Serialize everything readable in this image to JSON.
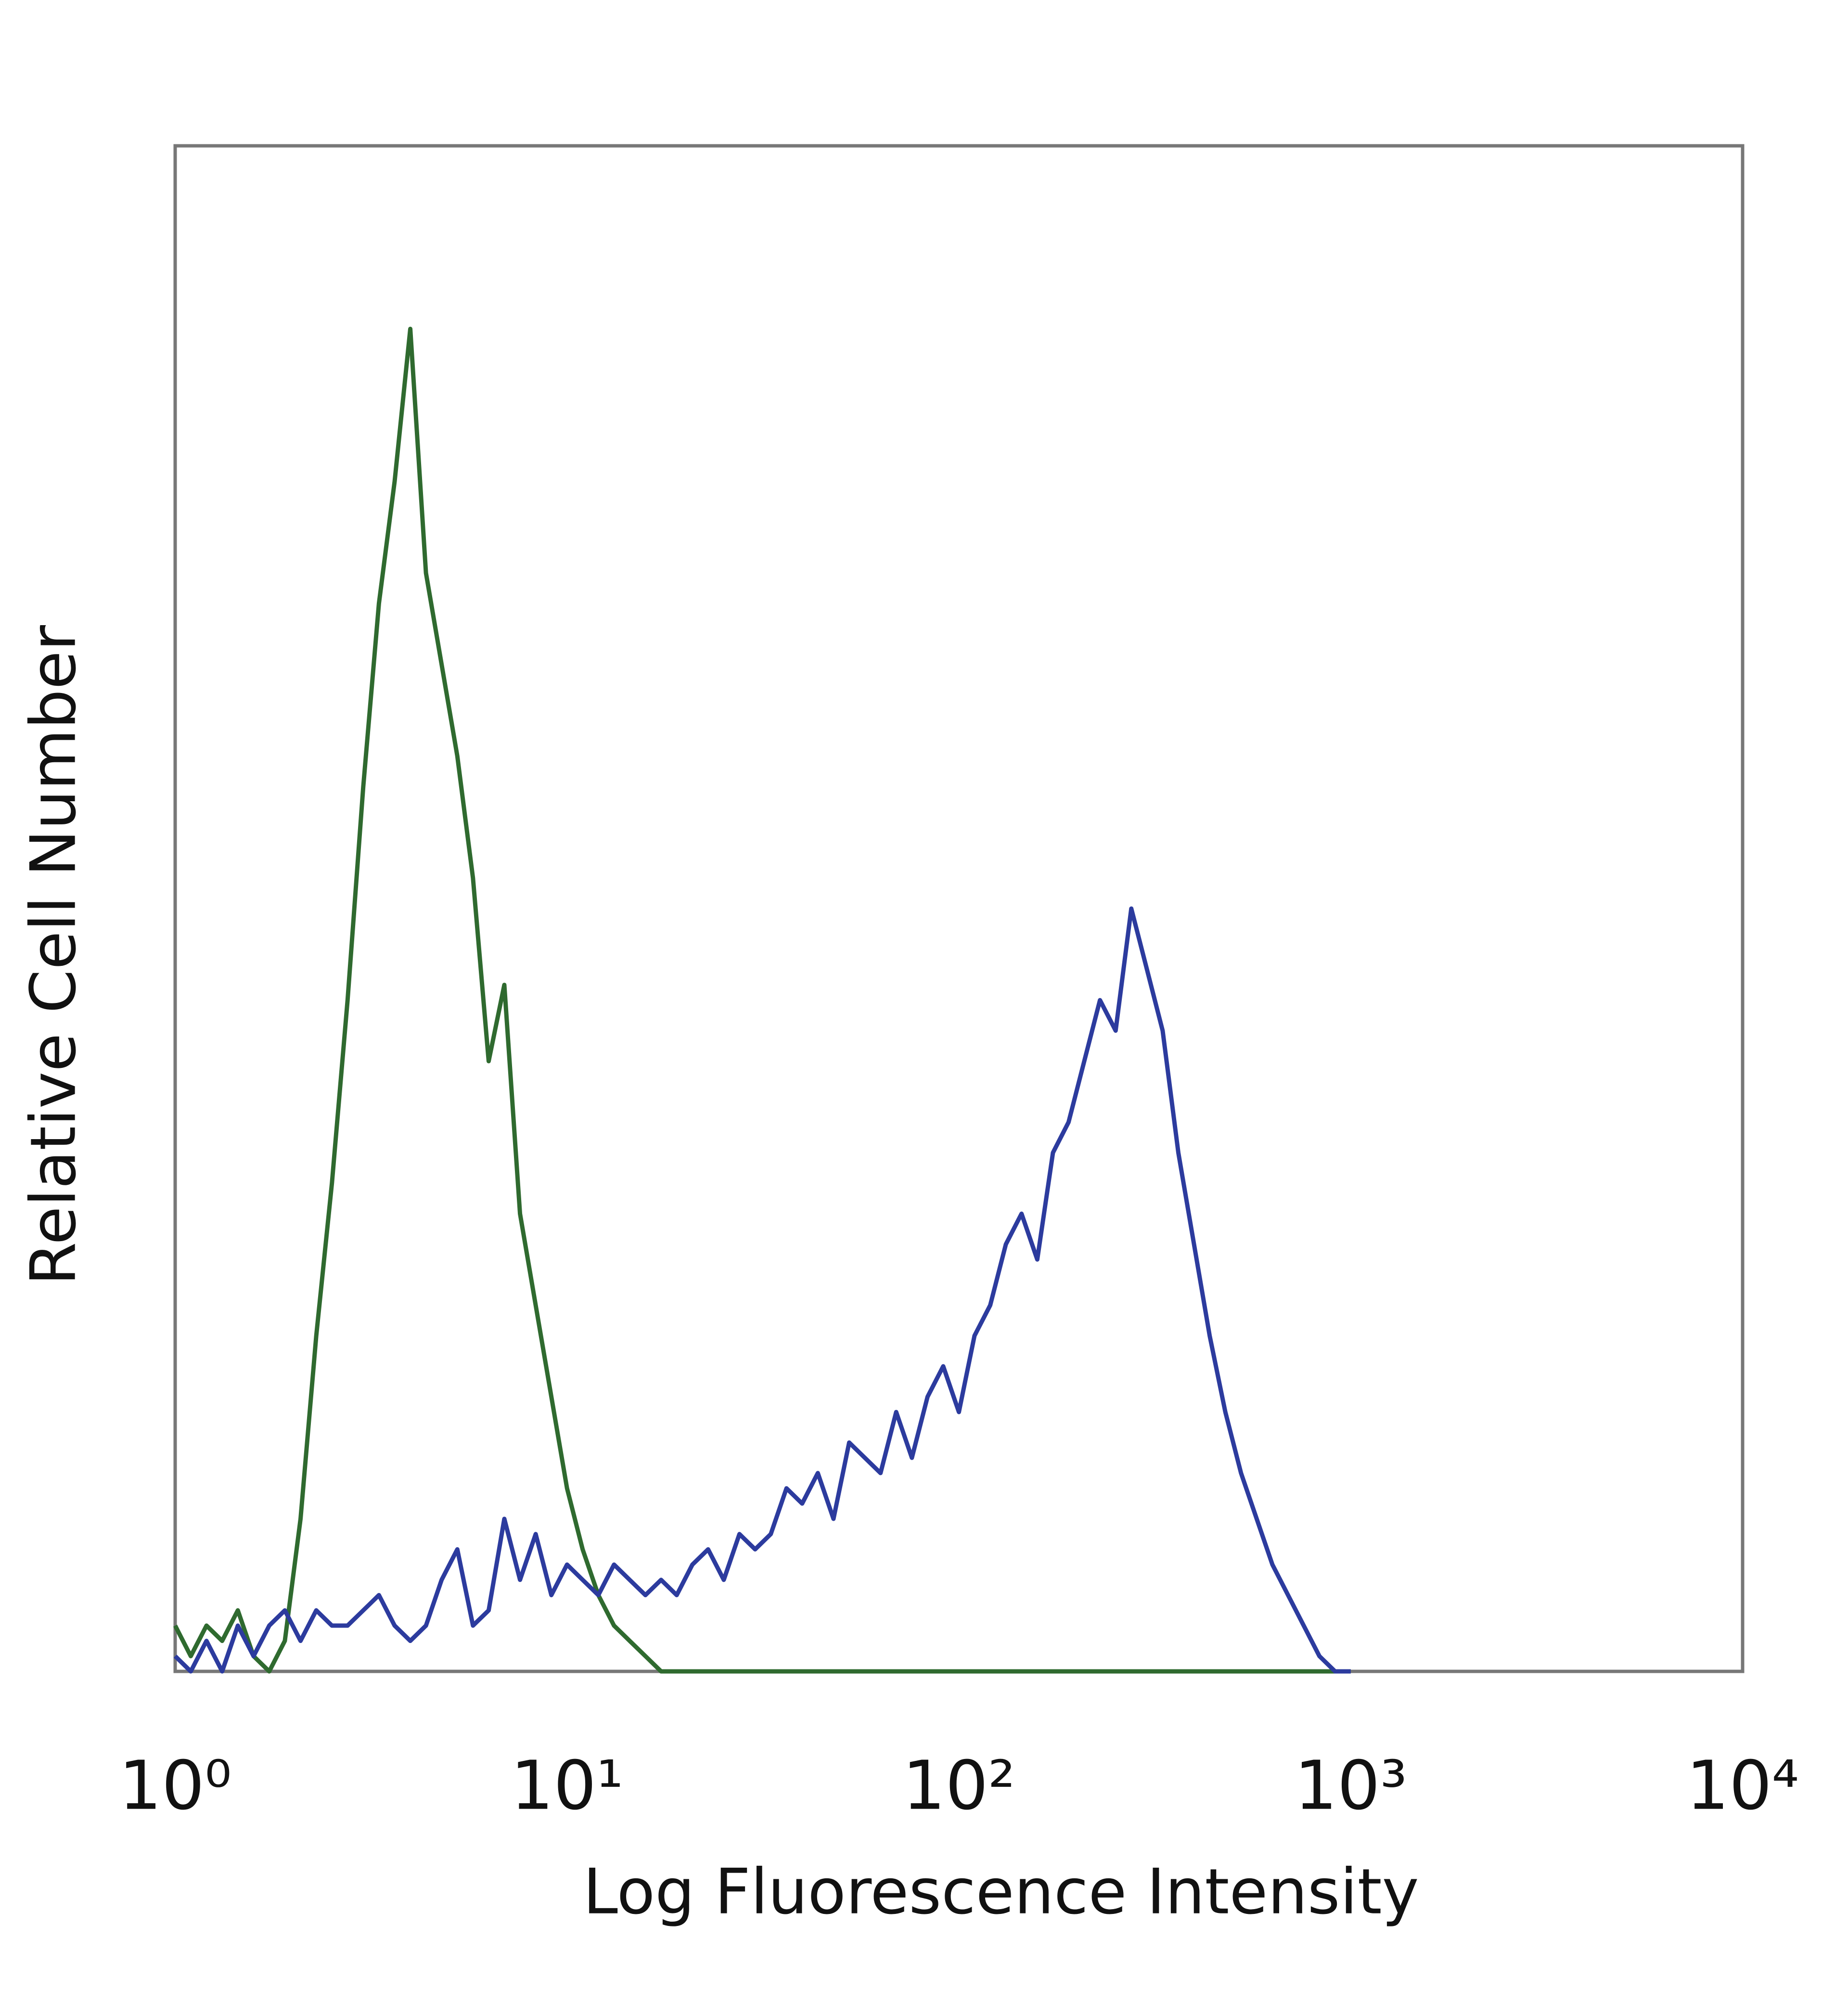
{
  "chart_data": {
    "type": "line",
    "x_label": "Log Fluorescence Intensity",
    "y_label": "Relative Cell Number",
    "xscale": "log",
    "grid": false,
    "xlim": [
      1,
      10000
    ],
    "ylim": [
      0,
      100
    ],
    "xticks": [
      {
        "value": 1,
        "label": "10⁰"
      },
      {
        "value": 10,
        "label": "10¹"
      },
      {
        "value": 100,
        "label": "10²"
      },
      {
        "value": 1000,
        "label": "10³"
      },
      {
        "value": 10000,
        "label": "10⁴"
      }
    ],
    "x": [
      1,
      1.096,
      1.202,
      1.318,
      1.445,
      1.585,
      1.738,
      1.905,
      2.089,
      2.291,
      2.512,
      2.754,
      3.02,
      3.311,
      3.631,
      3.981,
      4.365,
      4.786,
      5.248,
      5.754,
      6.31,
      6.918,
      7.586,
      8.318,
      9.12,
      10,
      10.96,
      12.02,
      13.18,
      14.45,
      15.85,
      17.38,
      19.05,
      20.89,
      22.91,
      25.12,
      27.54,
      30.2,
      33.11,
      36.31,
      39.81,
      43.65,
      47.86,
      52.48,
      57.54,
      63.1,
      69.18,
      75.86,
      83.18,
      91.2,
      100,
      109.6,
      120.2,
      131.8,
      144.5,
      158.5,
      173.8,
      190.5,
      208.9,
      229.1,
      251.2,
      275.4,
      302,
      331.1,
      363.1,
      398.1,
      436.5,
      478.6,
      524.8,
      575.4,
      631,
      691.8,
      758.6,
      831.8,
      912,
      1000
    ],
    "series": [
      {
        "color": "#2f6a2f",
        "values": [
          3,
          1,
          3,
          2,
          4,
          1,
          0,
          2,
          10,
          22,
          32,
          44,
          58,
          70,
          78,
          88,
          72,
          66,
          60,
          52,
          40,
          45,
          30,
          24,
          18,
          12,
          8,
          5,
          3,
          2,
          1,
          0,
          0,
          0,
          0,
          0,
          0,
          0,
          0,
          0,
          0,
          0,
          0,
          0,
          0,
          0,
          0,
          0,
          0,
          0,
          0,
          0,
          0,
          0,
          0,
          0,
          0,
          0,
          0,
          0,
          0,
          0,
          0,
          0,
          0,
          0,
          0,
          0,
          0,
          0,
          0,
          0,
          0,
          0,
          0,
          0
        ]
      },
      {
        "color": "#2c3b9e",
        "values": [
          1,
          0,
          2,
          0,
          3,
          1,
          3,
          4,
          2,
          4,
          3,
          3,
          4,
          5,
          3,
          2,
          3,
          6,
          8,
          3,
          4,
          10,
          6,
          9,
          5,
          7,
          6,
          5,
          7,
          6,
          5,
          6,
          5,
          7,
          8,
          6,
          9,
          8,
          9,
          12,
          11,
          13,
          10,
          15,
          14,
          13,
          17,
          14,
          18,
          20,
          17,
          22,
          24,
          28,
          30,
          27,
          34,
          36,
          40,
          44,
          42,
          50,
          46,
          42,
          34,
          28,
          22,
          17,
          13,
          10,
          7,
          5,
          3,
          1,
          0,
          0
        ]
      }
    ]
  }
}
